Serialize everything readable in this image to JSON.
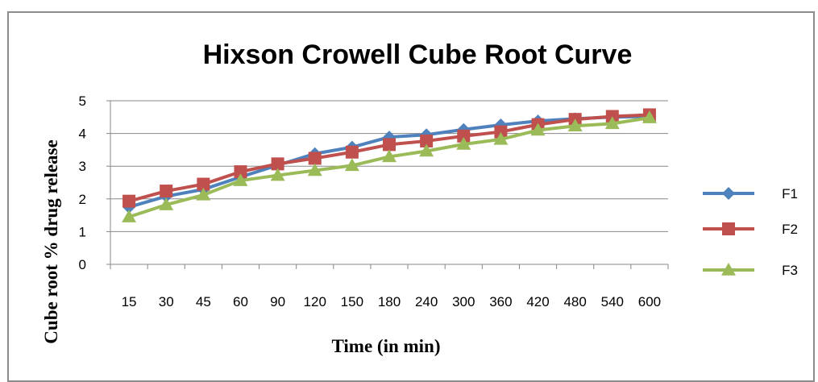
{
  "chart_data": {
    "type": "line",
    "title": "Hixson Crowell Cube Root Curve",
    "xlabel": "Time (in min)",
    "ylabel": "Cube root  % drug release",
    "categories": [
      "15",
      "30",
      "45",
      "60",
      "90",
      "120",
      "150",
      "180",
      "240",
      "300",
      "360",
      "420",
      "480",
      "540",
      "600"
    ],
    "ylim": [
      0,
      5
    ],
    "yticks": [
      "0",
      "1",
      "2",
      "3",
      "4",
      "5"
    ],
    "grid": true,
    "legend_position": "right",
    "series": [
      {
        "name": "F1",
        "color": "#4f81bd",
        "marker": "diamond",
        "values": [
          1.75,
          2.08,
          2.29,
          2.67,
          3.03,
          3.38,
          3.58,
          3.89,
          3.96,
          4.12,
          4.26,
          4.38,
          4.45,
          4.5,
          4.52
        ]
      },
      {
        "name": "F2",
        "color": "#c0504d",
        "marker": "square",
        "values": [
          1.93,
          2.24,
          2.45,
          2.83,
          3.07,
          3.24,
          3.43,
          3.66,
          3.77,
          3.92,
          4.05,
          4.27,
          4.43,
          4.52,
          4.57
        ]
      },
      {
        "name": "F3",
        "color": "#9bbb59",
        "marker": "triangle",
        "values": [
          1.45,
          1.82,
          2.12,
          2.56,
          2.72,
          2.87,
          3.02,
          3.29,
          3.46,
          3.67,
          3.82,
          4.1,
          4.23,
          4.3,
          4.48
        ]
      }
    ]
  }
}
